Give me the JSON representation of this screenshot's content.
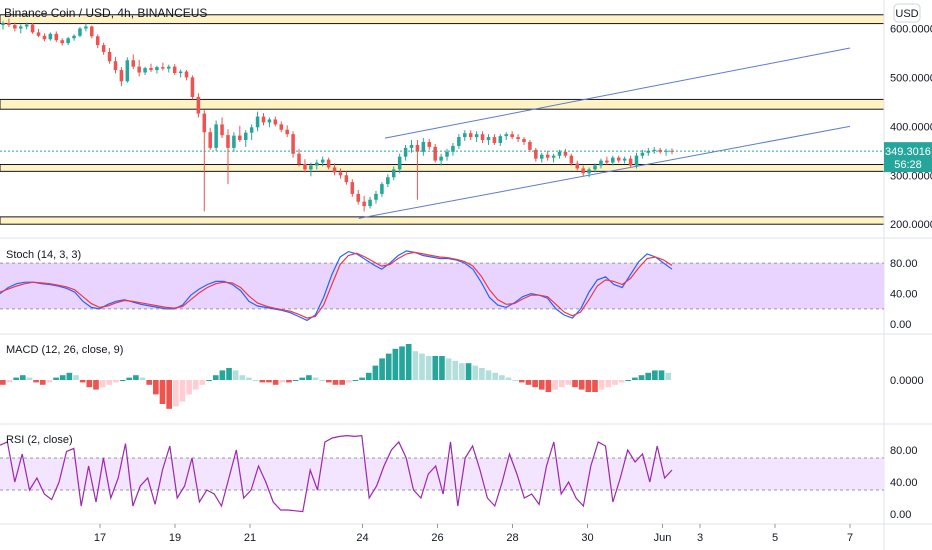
{
  "header": {
    "symbol_title": "Binance Coin / USD, 4h, BINANCEUS",
    "currency_button": "USD"
  },
  "price_tag": {
    "price": "349.3016",
    "countdown": "56:28"
  },
  "colors": {
    "up": "#26a69a",
    "down": "#ef5350",
    "zone_fill": "#fff3c4",
    "zone_line": "#131722",
    "channel": "#5b7bd5",
    "stoch_k": "#2962ff",
    "stoch_d": "#f23645",
    "stoch_band": "#e9d4ff",
    "rsi_line": "#9c27b0",
    "rsi_band": "#f3e5ff",
    "macd_up_strong": "#26a69a",
    "macd_up_weak": "#b2dfdb",
    "macd_down_strong": "#ef5350",
    "macd_down_weak": "#ffcdd2"
  },
  "chart_data": [
    {
      "type": "candlestick",
      "pane": "price",
      "title": "Binance Coin / USD, 4h, BINANCEUS",
      "y_ticks": [
        "600.0000",
        "500.0000",
        "400.0000",
        "300.0000",
        "200.0000"
      ],
      "y_tick_values": [
        600,
        500,
        400,
        300,
        200
      ],
      "ylim": [
        180,
        650
      ],
      "last_price": 349.3016,
      "support_resistance_zones": [
        [
          610,
          628
        ],
        [
          435,
          455
        ],
        [
          308,
          322
        ],
        [
          200,
          215
        ]
      ],
      "channel_lines": [
        {
          "from": {
            "day": 24.6,
            "price": 376
          },
          "to": {
            "day": 37.0,
            "price": 560
          }
        },
        {
          "from": {
            "day": 23.9,
            "price": 212
          },
          "to": {
            "day": 37.0,
            "price": 400
          }
        }
      ],
      "candles": [
        {
          "o": 607,
          "h": 615,
          "l": 598,
          "c": 611
        },
        {
          "o": 611,
          "h": 620,
          "l": 603,
          "c": 607
        },
        {
          "o": 607,
          "h": 612,
          "l": 594,
          "c": 600
        },
        {
          "o": 600,
          "h": 608,
          "l": 590,
          "c": 604
        },
        {
          "o": 604,
          "h": 612,
          "l": 598,
          "c": 608
        },
        {
          "o": 608,
          "h": 611,
          "l": 589,
          "c": 592
        },
        {
          "o": 592,
          "h": 599,
          "l": 582,
          "c": 585
        },
        {
          "o": 585,
          "h": 590,
          "l": 574,
          "c": 578
        },
        {
          "o": 578,
          "h": 592,
          "l": 575,
          "c": 589
        },
        {
          "o": 589,
          "h": 594,
          "l": 572,
          "c": 576
        },
        {
          "o": 576,
          "h": 580,
          "l": 565,
          "c": 570
        },
        {
          "o": 570,
          "h": 583,
          "l": 566,
          "c": 580
        },
        {
          "o": 580,
          "h": 588,
          "l": 575,
          "c": 585
        },
        {
          "o": 585,
          "h": 603,
          "l": 582,
          "c": 600
        },
        {
          "o": 600,
          "h": 610,
          "l": 594,
          "c": 604
        },
        {
          "o": 604,
          "h": 606,
          "l": 580,
          "c": 584
        },
        {
          "o": 584,
          "h": 588,
          "l": 560,
          "c": 566
        },
        {
          "o": 566,
          "h": 571,
          "l": 546,
          "c": 552
        },
        {
          "o": 552,
          "h": 560,
          "l": 528,
          "c": 533
        },
        {
          "o": 533,
          "h": 542,
          "l": 508,
          "c": 515
        },
        {
          "o": 515,
          "h": 521,
          "l": 482,
          "c": 492
        },
        {
          "o": 492,
          "h": 541,
          "l": 489,
          "c": 535
        },
        {
          "o": 535,
          "h": 547,
          "l": 517,
          "c": 522
        },
        {
          "o": 522,
          "h": 536,
          "l": 502,
          "c": 510
        },
        {
          "o": 510,
          "h": 522,
          "l": 505,
          "c": 519
        },
        {
          "o": 519,
          "h": 528,
          "l": 511,
          "c": 515
        },
        {
          "o": 515,
          "h": 524,
          "l": 508,
          "c": 521
        },
        {
          "o": 521,
          "h": 530,
          "l": 514,
          "c": 518
        },
        {
          "o": 518,
          "h": 526,
          "l": 510,
          "c": 522
        },
        {
          "o": 522,
          "h": 527,
          "l": 505,
          "c": 509
        },
        {
          "o": 509,
          "h": 516,
          "l": 500,
          "c": 512
        },
        {
          "o": 512,
          "h": 515,
          "l": 494,
          "c": 500
        },
        {
          "o": 500,
          "h": 504,
          "l": 455,
          "c": 460
        },
        {
          "o": 460,
          "h": 468,
          "l": 418,
          "c": 426
        },
        {
          "o": 426,
          "h": 433,
          "l": 226,
          "c": 388
        },
        {
          "o": 388,
          "h": 397,
          "l": 352,
          "c": 356
        },
        {
          "o": 356,
          "h": 412,
          "l": 350,
          "c": 404
        },
        {
          "o": 404,
          "h": 418,
          "l": 376,
          "c": 382
        },
        {
          "o": 382,
          "h": 394,
          "l": 282,
          "c": 356
        },
        {
          "o": 356,
          "h": 388,
          "l": 348,
          "c": 381
        },
        {
          "o": 381,
          "h": 401,
          "l": 368,
          "c": 372
        },
        {
          "o": 372,
          "h": 392,
          "l": 358,
          "c": 387
        },
        {
          "o": 387,
          "h": 404,
          "l": 372,
          "c": 398
        },
        {
          "o": 398,
          "h": 430,
          "l": 390,
          "c": 420
        },
        {
          "o": 420,
          "h": 427,
          "l": 402,
          "c": 408
        },
        {
          "o": 408,
          "h": 418,
          "l": 398,
          "c": 414
        },
        {
          "o": 414,
          "h": 420,
          "l": 400,
          "c": 404
        },
        {
          "o": 404,
          "h": 410,
          "l": 388,
          "c": 393
        },
        {
          "o": 393,
          "h": 402,
          "l": 378,
          "c": 384
        },
        {
          "o": 384,
          "h": 390,
          "l": 336,
          "c": 344
        },
        {
          "o": 344,
          "h": 354,
          "l": 318,
          "c": 323
        },
        {
          "o": 323,
          "h": 333,
          "l": 306,
          "c": 312
        },
        {
          "o": 312,
          "h": 326,
          "l": 298,
          "c": 320
        },
        {
          "o": 320,
          "h": 332,
          "l": 312,
          "c": 326
        },
        {
          "o": 326,
          "h": 338,
          "l": 318,
          "c": 332
        },
        {
          "o": 332,
          "h": 336,
          "l": 312,
          "c": 316
        },
        {
          "o": 316,
          "h": 324,
          "l": 300,
          "c": 306
        },
        {
          "o": 306,
          "h": 314,
          "l": 293,
          "c": 300
        },
        {
          "o": 300,
          "h": 308,
          "l": 281,
          "c": 286
        },
        {
          "o": 286,
          "h": 292,
          "l": 256,
          "c": 262
        },
        {
          "o": 262,
          "h": 270,
          "l": 240,
          "c": 246
        },
        {
          "o": 246,
          "h": 258,
          "l": 226,
          "c": 237
        },
        {
          "o": 237,
          "h": 256,
          "l": 232,
          "c": 250
        },
        {
          "o": 250,
          "h": 268,
          "l": 242,
          "c": 262
        },
        {
          "o": 262,
          "h": 286,
          "l": 256,
          "c": 282
        },
        {
          "o": 282,
          "h": 302,
          "l": 276,
          "c": 296
        },
        {
          "o": 296,
          "h": 318,
          "l": 290,
          "c": 312
        },
        {
          "o": 312,
          "h": 344,
          "l": 304,
          "c": 338
        },
        {
          "o": 338,
          "h": 362,
          "l": 330,
          "c": 356
        },
        {
          "o": 356,
          "h": 372,
          "l": 346,
          "c": 362
        },
        {
          "o": 362,
          "h": 372,
          "l": 250,
          "c": 348
        },
        {
          "o": 348,
          "h": 376,
          "l": 340,
          "c": 368
        },
        {
          "o": 368,
          "h": 374,
          "l": 352,
          "c": 358
        },
        {
          "o": 358,
          "h": 364,
          "l": 326,
          "c": 330
        },
        {
          "o": 330,
          "h": 344,
          "l": 320,
          "c": 338
        },
        {
          "o": 338,
          "h": 354,
          "l": 330,
          "c": 348
        },
        {
          "o": 348,
          "h": 366,
          "l": 340,
          "c": 360
        },
        {
          "o": 360,
          "h": 384,
          "l": 354,
          "c": 378
        },
        {
          "o": 378,
          "h": 392,
          "l": 370,
          "c": 386
        },
        {
          "o": 386,
          "h": 392,
          "l": 372,
          "c": 378
        },
        {
          "o": 378,
          "h": 390,
          "l": 368,
          "c": 384
        },
        {
          "o": 384,
          "h": 390,
          "l": 366,
          "c": 372
        },
        {
          "o": 372,
          "h": 384,
          "l": 362,
          "c": 378
        },
        {
          "o": 378,
          "h": 384,
          "l": 362,
          "c": 366
        },
        {
          "o": 366,
          "h": 384,
          "l": 360,
          "c": 380
        },
        {
          "o": 380,
          "h": 388,
          "l": 372,
          "c": 384
        },
        {
          "o": 384,
          "h": 390,
          "l": 374,
          "c": 378
        },
        {
          "o": 378,
          "h": 384,
          "l": 368,
          "c": 374
        },
        {
          "o": 374,
          "h": 378,
          "l": 362,
          "c": 368
        },
        {
          "o": 368,
          "h": 372,
          "l": 348,
          "c": 352
        },
        {
          "o": 352,
          "h": 356,
          "l": 328,
          "c": 334
        },
        {
          "o": 334,
          "h": 346,
          "l": 326,
          "c": 342
        },
        {
          "o": 342,
          "h": 350,
          "l": 330,
          "c": 336
        },
        {
          "o": 336,
          "h": 344,
          "l": 326,
          "c": 340
        },
        {
          "o": 340,
          "h": 352,
          "l": 334,
          "c": 348
        },
        {
          "o": 348,
          "h": 354,
          "l": 336,
          "c": 340
        },
        {
          "o": 340,
          "h": 344,
          "l": 320,
          "c": 324
        },
        {
          "o": 324,
          "h": 330,
          "l": 310,
          "c": 314
        },
        {
          "o": 314,
          "h": 320,
          "l": 298,
          "c": 304
        },
        {
          "o": 304,
          "h": 316,
          "l": 296,
          "c": 312
        },
        {
          "o": 312,
          "h": 324,
          "l": 306,
          "c": 320
        },
        {
          "o": 320,
          "h": 334,
          "l": 314,
          "c": 330
        },
        {
          "o": 330,
          "h": 338,
          "l": 322,
          "c": 326
        },
        {
          "o": 326,
          "h": 340,
          "l": 320,
          "c": 336
        },
        {
          "o": 336,
          "h": 340,
          "l": 326,
          "c": 330
        },
        {
          "o": 330,
          "h": 338,
          "l": 324,
          "c": 334
        },
        {
          "o": 334,
          "h": 340,
          "l": 316,
          "c": 320
        },
        {
          "o": 320,
          "h": 346,
          "l": 314,
          "c": 340
        },
        {
          "o": 340,
          "h": 352,
          "l": 334,
          "c": 346
        },
        {
          "o": 346,
          "h": 356,
          "l": 340,
          "c": 350
        },
        {
          "o": 350,
          "h": 358,
          "l": 344,
          "c": 352
        },
        {
          "o": 352,
          "h": 356,
          "l": 344,
          "c": 348
        },
        {
          "o": 348,
          "h": 354,
          "l": 340,
          "c": 350
        },
        {
          "o": 350,
          "h": 355,
          "l": 343,
          "c": 349.3
        }
      ]
    },
    {
      "type": "line",
      "pane": "stoch",
      "title": "Stoch (14, 3, 3)",
      "y_ticks": [
        "80.00",
        "40.00",
        "0.00"
      ],
      "y_tick_values": [
        80,
        40,
        0
      ],
      "ylim": [
        -5,
        105
      ],
      "band": [
        20,
        80
      ],
      "series": [
        {
          "values": [
            40,
            48,
            53,
            55,
            55,
            53,
            52,
            50,
            47,
            42,
            30,
            22,
            20,
            26,
            30,
            32,
            29,
            26,
            24,
            22,
            20,
            20,
            25,
            38,
            46,
            52,
            56,
            56,
            52,
            44,
            30,
            24,
            22,
            20,
            18,
            15,
            10,
            5,
            12,
            35,
            65,
            88,
            95,
            92,
            85,
            78,
            72,
            80,
            90,
            96,
            94,
            90,
            88,
            86,
            86,
            84,
            80,
            72,
            55,
            35,
            25,
            22,
            28,
            36,
            40,
            38,
            34,
            20,
            12,
            8,
            20,
            42,
            58,
            62,
            52,
            48,
            65,
            82,
            92,
            88,
            80,
            72
          ]
        },
        {
          "values": [
            42,
            46,
            50,
            53,
            55,
            54,
            53,
            51,
            49,
            45,
            36,
            27,
            22,
            24,
            28,
            31,
            30,
            28,
            26,
            24,
            22,
            21,
            23,
            32,
            41,
            48,
            53,
            55,
            54,
            48,
            37,
            28,
            24,
            21,
            19,
            17,
            13,
            8,
            10,
            25,
            52,
            78,
            90,
            93,
            88,
            82,
            76,
            78,
            86,
            92,
            94,
            92,
            90,
            88,
            87,
            85,
            82,
            76,
            63,
            45,
            32,
            26,
            27,
            33,
            38,
            38,
            36,
            26,
            16,
            11,
            16,
            32,
            50,
            58,
            56,
            52,
            60,
            74,
            86,
            88,
            84,
            77
          ]
        }
      ]
    },
    {
      "type": "bar",
      "pane": "macd",
      "title": "MACD (12, 26, close, 9)",
      "y_ticks": [
        "0.0000"
      ],
      "y_tick_values": [
        0
      ],
      "values": [
        -2,
        -1,
        1,
        2,
        1,
        -1,
        -2,
        -1,
        1,
        2,
        3,
        2,
        -1,
        -3,
        -4,
        -3,
        -2,
        -1,
        0,
        1,
        2,
        1,
        -2,
        -6,
        -10,
        -12,
        -11,
        -9,
        -6,
        -4,
        -2,
        0,
        2,
        4,
        5,
        4,
        2,
        1,
        0,
        -1,
        -1,
        -2,
        -1,
        -1,
        0,
        1,
        2,
        1,
        0,
        -1,
        -2,
        -2,
        -1,
        0,
        1,
        3,
        6,
        9,
        11,
        13,
        14,
        15,
        12,
        11,
        10,
        10,
        10,
        9,
        8,
        7,
        7,
        6,
        5,
        4,
        3,
        2,
        1,
        0,
        -1,
        -2,
        -3,
        -4,
        -5,
        -4,
        -3,
        -2,
        -3,
        -4,
        -5,
        -5,
        -4,
        -3,
        -2,
        -1,
        0,
        1,
        2,
        3,
        4,
        4,
        3
      ]
    },
    {
      "type": "line",
      "pane": "rsi",
      "title": "RSI (2, close)",
      "y_ticks": [
        "80.00",
        "40.00",
        "0.00"
      ],
      "y_tick_values": [
        80,
        40,
        0
      ],
      "ylim": [
        -5,
        105
      ],
      "band": [
        30,
        70
      ],
      "values": [
        86,
        90,
        40,
        75,
        30,
        45,
        25,
        18,
        40,
        78,
        82,
        10,
        60,
        15,
        70,
        20,
        45,
        88,
        10,
        35,
        45,
        12,
        55,
        85,
        20,
        35,
        70,
        15,
        30,
        25,
        10,
        45,
        80,
        20,
        30,
        60,
        40,
        15,
        5,
        5,
        4,
        3,
        55,
        30,
        90,
        95,
        97,
        98,
        97,
        98,
        20,
        35,
        60,
        80,
        90,
        70,
        30,
        20,
        50,
        60,
        25,
        90,
        10,
        70,
        85,
        55,
        20,
        10,
        40,
        75,
        50,
        20,
        25,
        12,
        60,
        90,
        25,
        40,
        20,
        10,
        60,
        90,
        85,
        15,
        45,
        80,
        65,
        75,
        40,
        85,
        45,
        55
      ]
    }
  ],
  "x_axis": {
    "labels": [
      "17",
      "19",
      "21",
      "24",
      "26",
      "28",
      "30",
      "Jun",
      "3",
      "5",
      "7"
    ],
    "label_days": [
      17,
      19,
      21,
      24,
      26,
      28,
      30,
      32,
      33,
      35,
      37
    ]
  }
}
